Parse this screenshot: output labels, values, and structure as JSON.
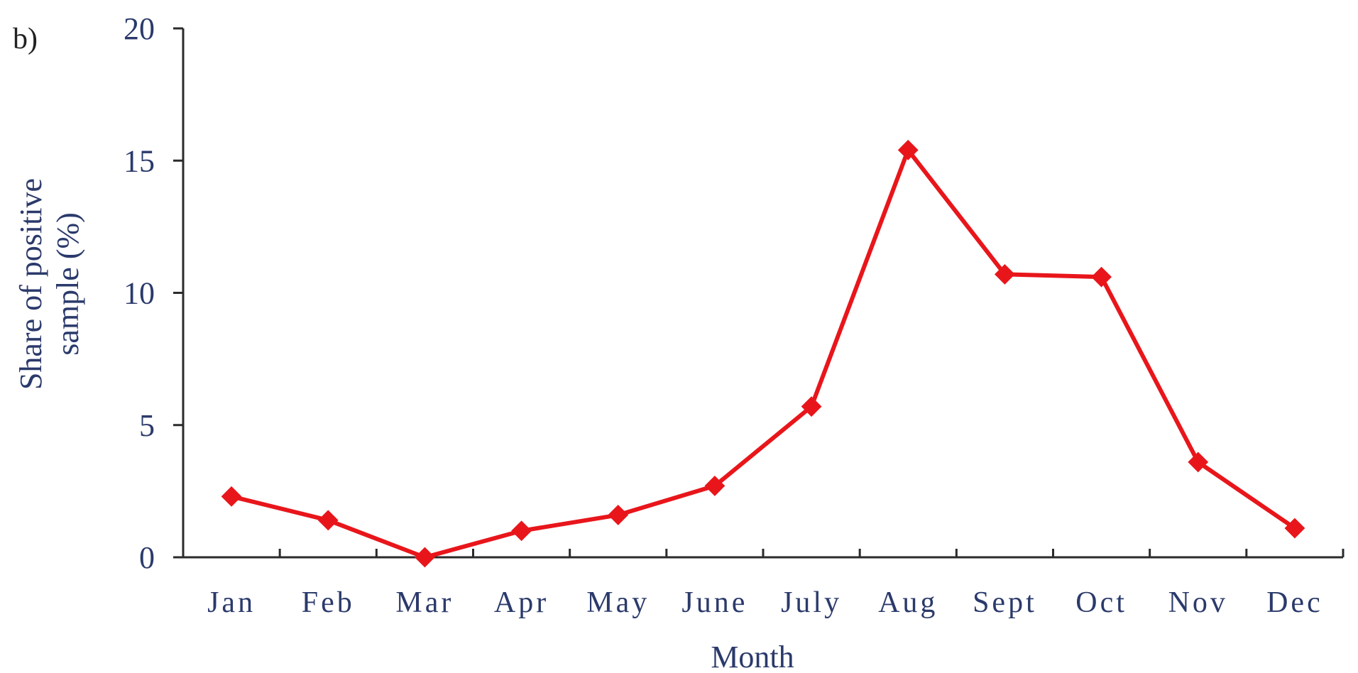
{
  "chart_data": {
    "type": "line",
    "panel_label": "b)",
    "xlabel": "Month",
    "ylabel_lines": [
      "Share of positive",
      "sample (%)"
    ],
    "categories": [
      "Jan",
      "Feb",
      "Mar",
      "Apr",
      "May",
      "June",
      "July",
      "Aug",
      "Sept",
      "Oct",
      "Nov",
      "Dec"
    ],
    "series": [
      {
        "values": [
          2.3,
          1.4,
          0.0,
          1.0,
          1.6,
          2.7,
          5.7,
          15.4,
          10.7,
          10.6,
          3.6,
          1.1
        ],
        "color": "#e8161b",
        "marker": "diamond"
      }
    ],
    "ylim": [
      0,
      20
    ],
    "yticks": [
      0,
      5,
      10,
      15,
      20
    ],
    "grid": false,
    "legend": "none"
  }
}
